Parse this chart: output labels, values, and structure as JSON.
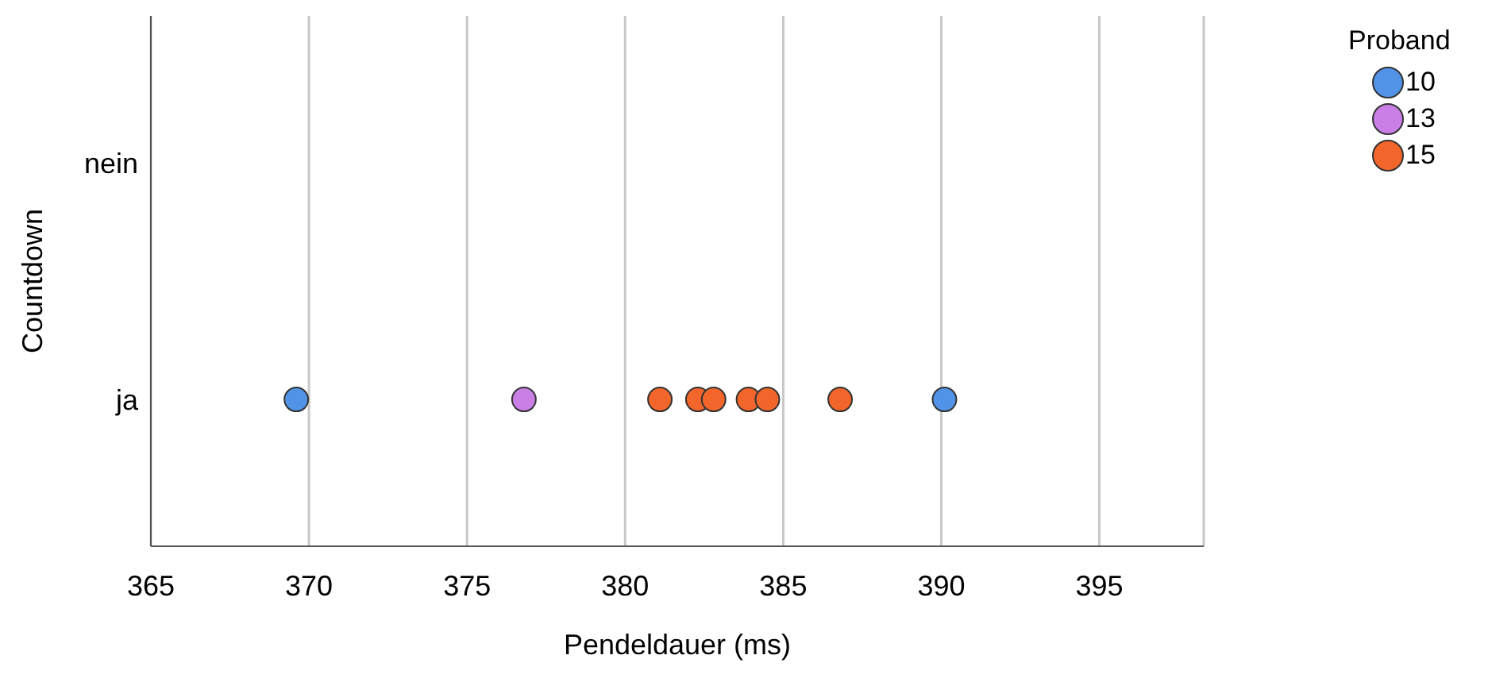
{
  "chart_data": {
    "type": "scatter",
    "orientation": "horizontal",
    "xlabel": "Pendeldauer (ms)",
    "ylabel": "Countdown",
    "legend_title": "Proband",
    "categories": [
      "nein",
      "ja"
    ],
    "xlim": [
      365,
      398.3
    ],
    "xticks": [
      365,
      370,
      375,
      380,
      385,
      390,
      395
    ],
    "grid": "x",
    "legend": "top right",
    "marker": "circle",
    "series": [
      {
        "name": "10",
        "color": "#5193e6",
        "x": [
          "ja",
          "ja"
        ],
        "values": [
          369.6,
          390.1
        ]
      },
      {
        "name": "13",
        "color": "#c97fe6",
        "x": [
          "ja"
        ],
        "values": [
          376.8
        ]
      },
      {
        "name": "15",
        "color": "#f2652b",
        "x": [
          "ja",
          "ja",
          "ja",
          "ja",
          "ja",
          "ja"
        ],
        "values": [
          381.1,
          382.3,
          382.8,
          383.9,
          384.5,
          386.8
        ]
      }
    ]
  }
}
